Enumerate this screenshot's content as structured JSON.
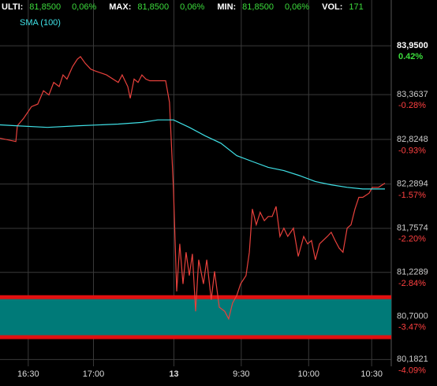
{
  "chart_data": {
    "type": "line",
    "header": [
      {
        "label": "ULTI:",
        "value": "81,8500",
        "change": "0,06%"
      },
      {
        "label": "MAX:",
        "value": "81,8500",
        "change": "0,06%"
      },
      {
        "label": "MIN:",
        "value": "81,8500",
        "change": "0,06%"
      },
      {
        "label": "VOL:",
        "value": 171
      }
    ],
    "xlim": [
      0,
      180
    ],
    "xticks": [
      {
        "value": 13,
        "label": "16:30"
      },
      {
        "value": 43,
        "label": "17:00"
      },
      {
        "value": 80,
        "label": "13"
      },
      {
        "value": 111,
        "label": "9:30"
      },
      {
        "value": 142,
        "label": "10:00"
      },
      {
        "value": 171,
        "label": "10:30"
      }
    ],
    "ylim": [
      80.1,
      84.5
    ],
    "yticks": [
      {
        "value": 83.95,
        "label": "83,9500"
      },
      {
        "value": 83.3637,
        "label": "83,3637"
      },
      {
        "value": 82.8248,
        "label": "82,8248"
      },
      {
        "value": 82.2894,
        "label": "82,2894"
      },
      {
        "value": 81.7574,
        "label": "81,7574"
      },
      {
        "value": 81.2289,
        "label": "81,2289"
      },
      {
        "value": 80.7,
        "label": "80,7000"
      },
      {
        "value": 80.1821,
        "label": "80,1821"
      }
    ],
    "y2lim": [
      -4.185,
      1.078
    ],
    "y2ticks": [
      {
        "value": 0.42,
        "label": "0.42%"
      },
      {
        "value": -0.28,
        "label": "-0.28%"
      },
      {
        "value": -0.93,
        "label": "-0.93%"
      },
      {
        "value": -1.57,
        "label": "-1.57%"
      },
      {
        "value": -2.2,
        "label": "-2.20%"
      },
      {
        "value": -2.84,
        "label": "-2.84%"
      },
      {
        "value": -3.47,
        "label": "-3.47%"
      },
      {
        "value": -4.09,
        "label": "-4.09%"
      }
    ],
    "grid": true,
    "zone": {
      "range": [
        80.45,
        80.93
      ],
      "color": "#007a78",
      "edge_color": "#e01010"
    },
    "series": [
      {
        "color": "#e8413c",
        "x": [
          0,
          7.3,
          8,
          10.9,
          14.5,
          17.4,
          20,
          22.5,
          24.7,
          27.2,
          29,
          30.8,
          33.4,
          35.6,
          37,
          39.2,
          41.7,
          43.5,
          49,
          54.4,
          56.2,
          58.8,
          59.9,
          61.7,
          63.5,
          65.3,
          67.1,
          68.9,
          76.2,
          78,
          79.8,
          81.3,
          82.7,
          84.2,
          85.6,
          87.1,
          88.5,
          90,
          91.4,
          93.6,
          95.1,
          97.2,
          98.7,
          100.9,
          103.4,
          105.2,
          107,
          108.9,
          110.7,
          113.2,
          114.7,
          116.1,
          117.9,
          119.7,
          121.6,
          123.4,
          125.2,
          127,
          128.8,
          130.6,
          132.4,
          135,
          137.2,
          139.7,
          141.5,
          143.3,
          145.1,
          147,
          150.6,
          152.4,
          154.2,
          156,
          157.8,
          159.7,
          161.5,
          163.3,
          165.1,
          166.9,
          169.8,
          171.3,
          174.2,
          177.1
        ],
        "values": [
          82.84,
          82.8,
          82.99,
          83.08,
          83.22,
          83.25,
          83.41,
          83.36,
          83.51,
          83.46,
          83.6,
          83.55,
          83.7,
          83.79,
          83.82,
          83.74,
          83.67,
          83.65,
          83.6,
          83.51,
          83.6,
          83.46,
          83.32,
          83.55,
          83.51,
          83.6,
          83.55,
          83.53,
          83.53,
          83.27,
          82.23,
          81.0,
          81.57,
          81.09,
          81.47,
          81.19,
          81.45,
          80.76,
          81.38,
          81.09,
          81.38,
          80.9,
          81.24,
          80.81,
          80.76,
          80.67,
          80.86,
          80.95,
          81.09,
          81.19,
          81.47,
          81.99,
          81.8,
          81.95,
          81.85,
          81.9,
          81.9,
          82.02,
          81.66,
          81.76,
          81.66,
          81.76,
          81.42,
          81.66,
          81.57,
          81.61,
          81.38,
          81.57,
          81.66,
          81.71,
          81.61,
          81.52,
          81.47,
          81.76,
          81.8,
          81.99,
          82.13,
          82.13,
          82.18,
          82.25,
          82.25,
          82.3
        ]
      },
      {
        "name": "SMA (100)",
        "color": "#3fe0e6",
        "x": [
          0,
          7.3,
          21.8,
          36.3,
          54.4,
          65.3,
          72.6,
          79.8,
          87.1,
          94.3,
          101.6,
          108.9,
          116.1,
          123.4,
          130.6,
          137.9,
          145.1,
          152.4,
          159.7,
          166.9,
          172.4,
          177.1
        ],
        "values": [
          83.0,
          82.99,
          82.97,
          82.99,
          83.01,
          83.03,
          83.06,
          83.06,
          82.97,
          82.87,
          82.78,
          82.63,
          82.56,
          82.49,
          82.45,
          82.39,
          82.32,
          82.28,
          82.25,
          82.23,
          82.23,
          82.23
        ]
      }
    ]
  }
}
